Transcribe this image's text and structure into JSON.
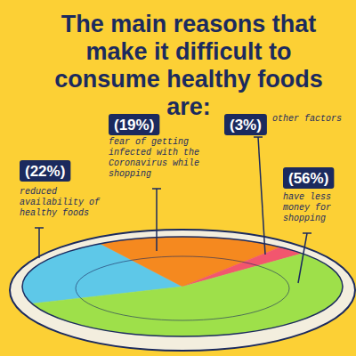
{
  "chart_data": {
    "type": "pie",
    "title": "The main reasons that make it difficult to consume healthy foods are:",
    "categories": [
      "reduced availability of healthy foods",
      "fear of getting infected with the Coronavirus while shopping",
      "other factors",
      "have less money for shopping"
    ],
    "values": [
      22,
      19,
      3,
      56
    ],
    "value_labels": [
      "(22%)",
      "(19%)",
      "(3%)",
      "(56%)"
    ],
    "colors": [
      "#5ec8e8",
      "#f5891f",
      "#f2566e",
      "#9ee04a"
    ],
    "data_labels": true
  }
}
